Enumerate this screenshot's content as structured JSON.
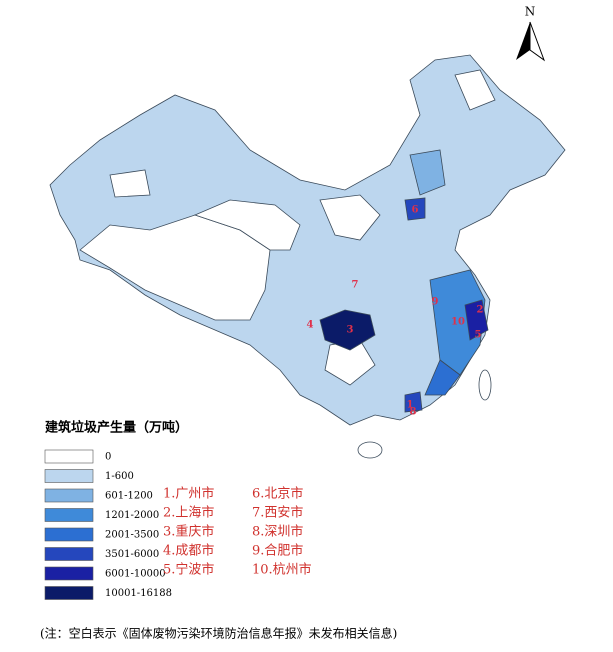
{
  "north_label": "N",
  "legend": {
    "title": "建筑垃圾产生量（万吨）",
    "items": [
      {
        "label": "0",
        "color": "#ffffff"
      },
      {
        "label": "1-600",
        "color": "#bcd6ee"
      },
      {
        "label": "601-1200",
        "color": "#7fb2e3"
      },
      {
        "label": "1201-2000",
        "color": "#3f8ad9"
      },
      {
        "label": "2001-3500",
        "color": "#2c6fd2"
      },
      {
        "label": "3501-6000",
        "color": "#2547bd"
      },
      {
        "label": "6001-10000",
        "color": "#1a20a3"
      },
      {
        "label": "10001-16188",
        "color": "#0b1b68"
      }
    ]
  },
  "cities": [
    "1.广州市",
    "2.上海市",
    "3.重庆市",
    "4.成都市",
    "5.宁波市",
    "6.北京市",
    "7.西安市",
    "8.深圳市",
    "9.合肥市",
    "10.杭州市"
  ],
  "map_labels": [
    "1",
    "2",
    "3",
    "4",
    "5",
    "6",
    "7",
    "8",
    "9",
    "10"
  ],
  "note": "(注：空白表示《固体废物污染环境防治信息年报》未发布相关信息)"
}
